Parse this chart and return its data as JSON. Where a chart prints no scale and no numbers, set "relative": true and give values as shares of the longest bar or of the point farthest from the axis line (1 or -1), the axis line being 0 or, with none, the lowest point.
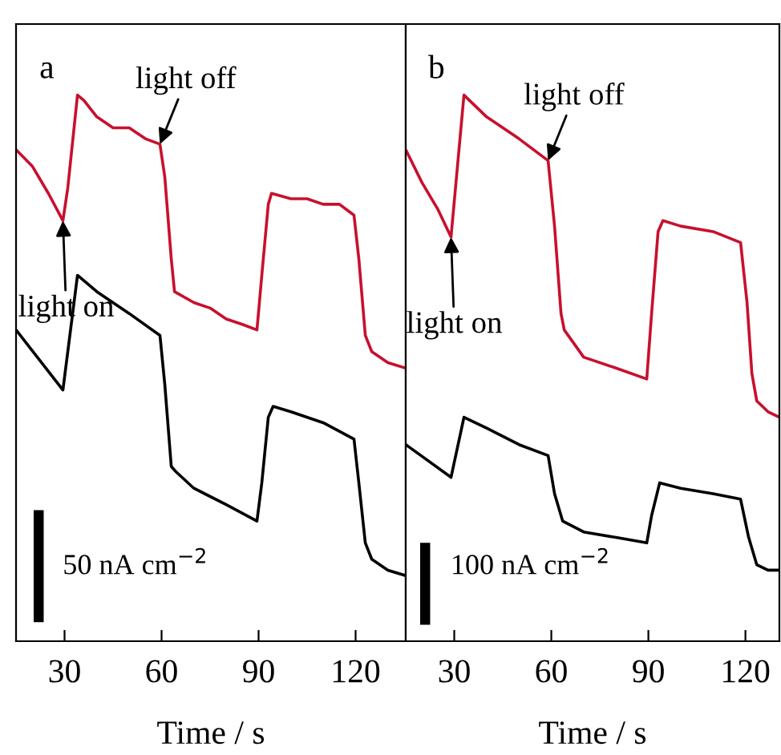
{
  "chart_data": [
    {
      "type": "line",
      "title": "a",
      "xlabel": "Time / s",
      "relative": true,
      "xlim": [
        15,
        135.5
      ],
      "xticks": [
        30,
        60,
        90,
        120
      ],
      "grid": false,
      "marker": "none",
      "line_style": "solid",
      "annotations": [
        {
          "text": "light off",
          "x": 59.5,
          "y": 0.91
        },
        {
          "text": "light on",
          "x": 29.5,
          "y": 0.77
        },
        "50 nA cm$^{−2}$"
      ],
      "series": [
        {
          "color": "#c8102e",
          "x": [
            15,
            20,
            25,
            29.5,
            31,
            34,
            36,
            40,
            45,
            50,
            55,
            59.5,
            61,
            63,
            64,
            70,
            75,
            80,
            85,
            89.5,
            91,
            93,
            94,
            100,
            105,
            110,
            115,
            119.5,
            121,
            123,
            125,
            130,
            135.5
          ],
          "values": [
            0.9,
            0.87,
            0.82,
            0.77,
            0.83,
            1.0,
            0.99,
            0.96,
            0.94,
            0.94,
            0.92,
            0.91,
            0.85,
            0.7,
            0.64,
            0.62,
            0.61,
            0.59,
            0.58,
            0.57,
            0.67,
            0.8,
            0.82,
            0.81,
            0.81,
            0.8,
            0.8,
            0.78,
            0.7,
            0.56,
            0.53,
            0.51,
            0.5
          ]
        },
        {
          "color": "#000000",
          "x": [
            15,
            29.5,
            34,
            40,
            50,
            59.5,
            61,
            63,
            64.5,
            70,
            80,
            89.5,
            91,
            93,
            94.5,
            100,
            110,
            119.5,
            121,
            123,
            125,
            130,
            135.5
          ],
          "values": [
            0.57,
            0.46,
            0.67,
            0.64,
            0.6,
            0.56,
            0.47,
            0.32,
            0.31,
            0.28,
            0.25,
            0.22,
            0.29,
            0.41,
            0.43,
            0.42,
            0.4,
            0.37,
            0.29,
            0.18,
            0.15,
            0.13,
            0.12
          ]
        },
        {
          "color": "#000000",
          "x": [
            22,
            22
          ],
          "values": [
            0.035,
            0.24
          ]
        }
      ]
    },
    {
      "type": "line",
      "title": "b",
      "xlabel": "Time / s",
      "relative": true,
      "xlim": [
        15,
        130.5
      ],
      "xticks": [
        30,
        60,
        90,
        120
      ],
      "grid": false,
      "marker": "none",
      "line_style": "solid",
      "annotations": [
        {
          "text": "light off",
          "x": 59,
          "y": 0.88
        },
        {
          "text": "light on",
          "x": 29,
          "y": 0.74
        },
        "100 nA cm$^{−2}$"
      ],
      "series": [
        {
          "color": "#c8102e",
          "x": [
            15,
            20,
            25,
            29,
            31,
            33,
            40,
            50,
            59,
            61,
            63,
            64,
            70,
            80,
            89.5,
            91,
            93,
            94.5,
            100,
            110,
            118.5,
            120.5,
            122,
            123.5,
            127,
            130.5
          ],
          "values": [
            0.9,
            0.84,
            0.79,
            0.74,
            0.87,
            1.0,
            0.96,
            0.92,
            0.88,
            0.76,
            0.6,
            0.57,
            0.52,
            0.5,
            0.48,
            0.6,
            0.75,
            0.77,
            0.76,
            0.75,
            0.73,
            0.62,
            0.49,
            0.44,
            0.42,
            0.41
          ]
        },
        {
          "color": "#000000",
          "x": [
            15,
            29,
            33,
            40,
            50,
            59,
            61,
            63.5,
            70,
            80,
            89.5,
            91,
            93.5,
            100,
            110,
            118.5,
            121,
            123.5,
            127,
            130.5
          ],
          "values": [
            0.36,
            0.3,
            0.41,
            0.39,
            0.36,
            0.34,
            0.27,
            0.22,
            0.2,
            0.19,
            0.18,
            0.23,
            0.29,
            0.28,
            0.27,
            0.26,
            0.19,
            0.14,
            0.13,
            0.13
          ]
        },
        {
          "color": "#000000",
          "x": [
            21,
            21
          ],
          "values": [
            0.03,
            0.18
          ]
        }
      ]
    }
  ]
}
